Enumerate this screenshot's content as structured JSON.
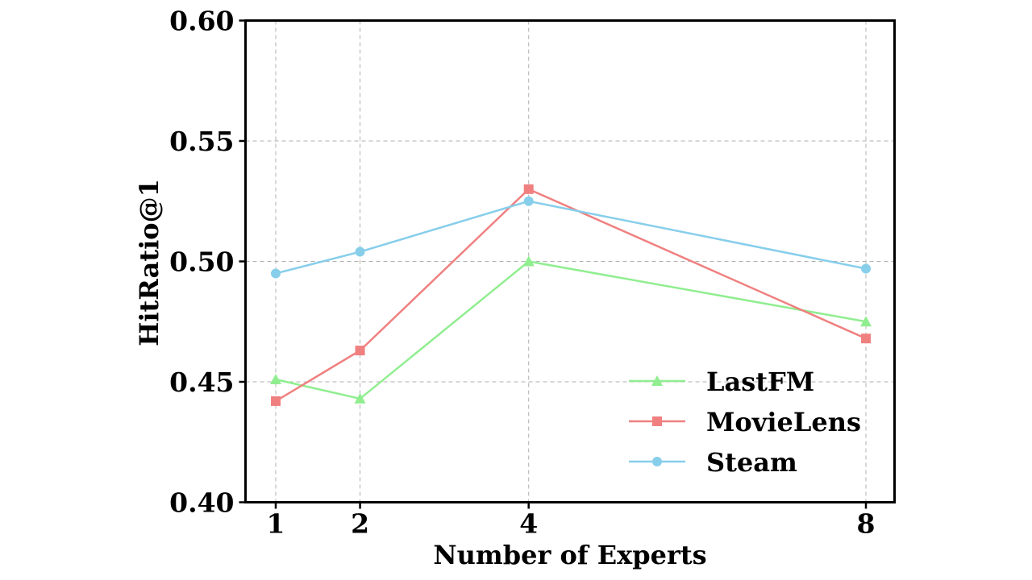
{
  "chart_data": {
    "type": "line",
    "x": [
      1,
      2,
      4,
      8
    ],
    "x_ticks": [
      "1",
      "2",
      "4",
      "8"
    ],
    "y_ticks": [
      "0.40",
      "0.45",
      "0.50",
      "0.55",
      "0.60"
    ],
    "y_tick_values": [
      0.4,
      0.45,
      0.5,
      0.55,
      0.6
    ],
    "ylim": [
      0.4,
      0.6
    ],
    "xlabel": "Number of Experts",
    "ylabel": "HitRatio@1",
    "grid": true,
    "legend_position": "lower-right",
    "series": [
      {
        "name": "LastFM",
        "values": [
          0.451,
          0.443,
          0.5,
          0.475
        ],
        "color": "#90ee90",
        "marker": "triangle"
      },
      {
        "name": "MovieLens",
        "values": [
          0.442,
          0.463,
          0.53,
          0.468
        ],
        "color": "#f08080",
        "marker": "square"
      },
      {
        "name": "Steam",
        "values": [
          0.495,
          0.504,
          0.525,
          0.497
        ],
        "color": "#87ceeb",
        "marker": "circle"
      }
    ]
  }
}
